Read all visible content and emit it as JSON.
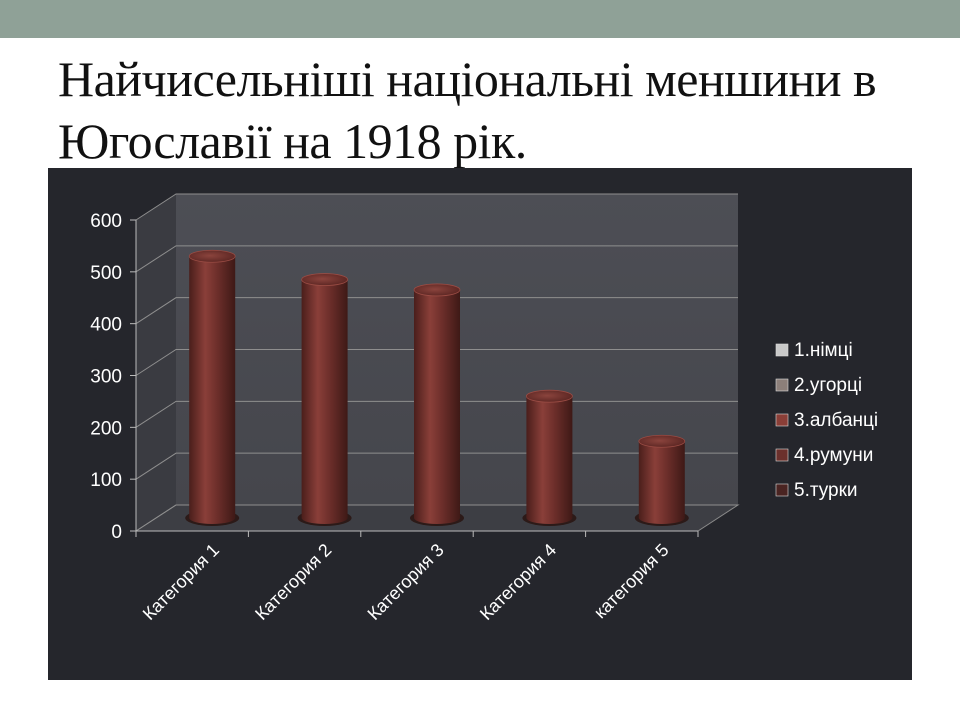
{
  "slide": {
    "title": "Найчисельніші національні меншини в Югославії на 1918 рік."
  },
  "colors": {
    "top_band": "#8fa197",
    "chart_background": "#25262c",
    "plot_wall": "#45464c",
    "bar_body": "#6e2f2b"
  },
  "chart_data": {
    "type": "bar",
    "style": "3d-cylinder",
    "categories": [
      "Категория 1",
      "Категория 2",
      "Категория 3",
      "Категория 4",
      "категория 5"
    ],
    "values": [
      505,
      460,
      440,
      235,
      148
    ],
    "ylim": [
      0,
      600
    ],
    "yticks": [
      0,
      100,
      200,
      300,
      400,
      500,
      600
    ],
    "grid": true,
    "legend_position": "right",
    "legend": [
      {
        "label": "1.німці",
        "color": "#c9c9c9"
      },
      {
        "label": "2.угорці",
        "color": "#8c7f7a"
      },
      {
        "label": "3.албанці",
        "color": "#8a3e37"
      },
      {
        "label": "4.румуни",
        "color": "#6b302c"
      },
      {
        "label": "5.турки",
        "color": "#4a2422"
      }
    ]
  }
}
